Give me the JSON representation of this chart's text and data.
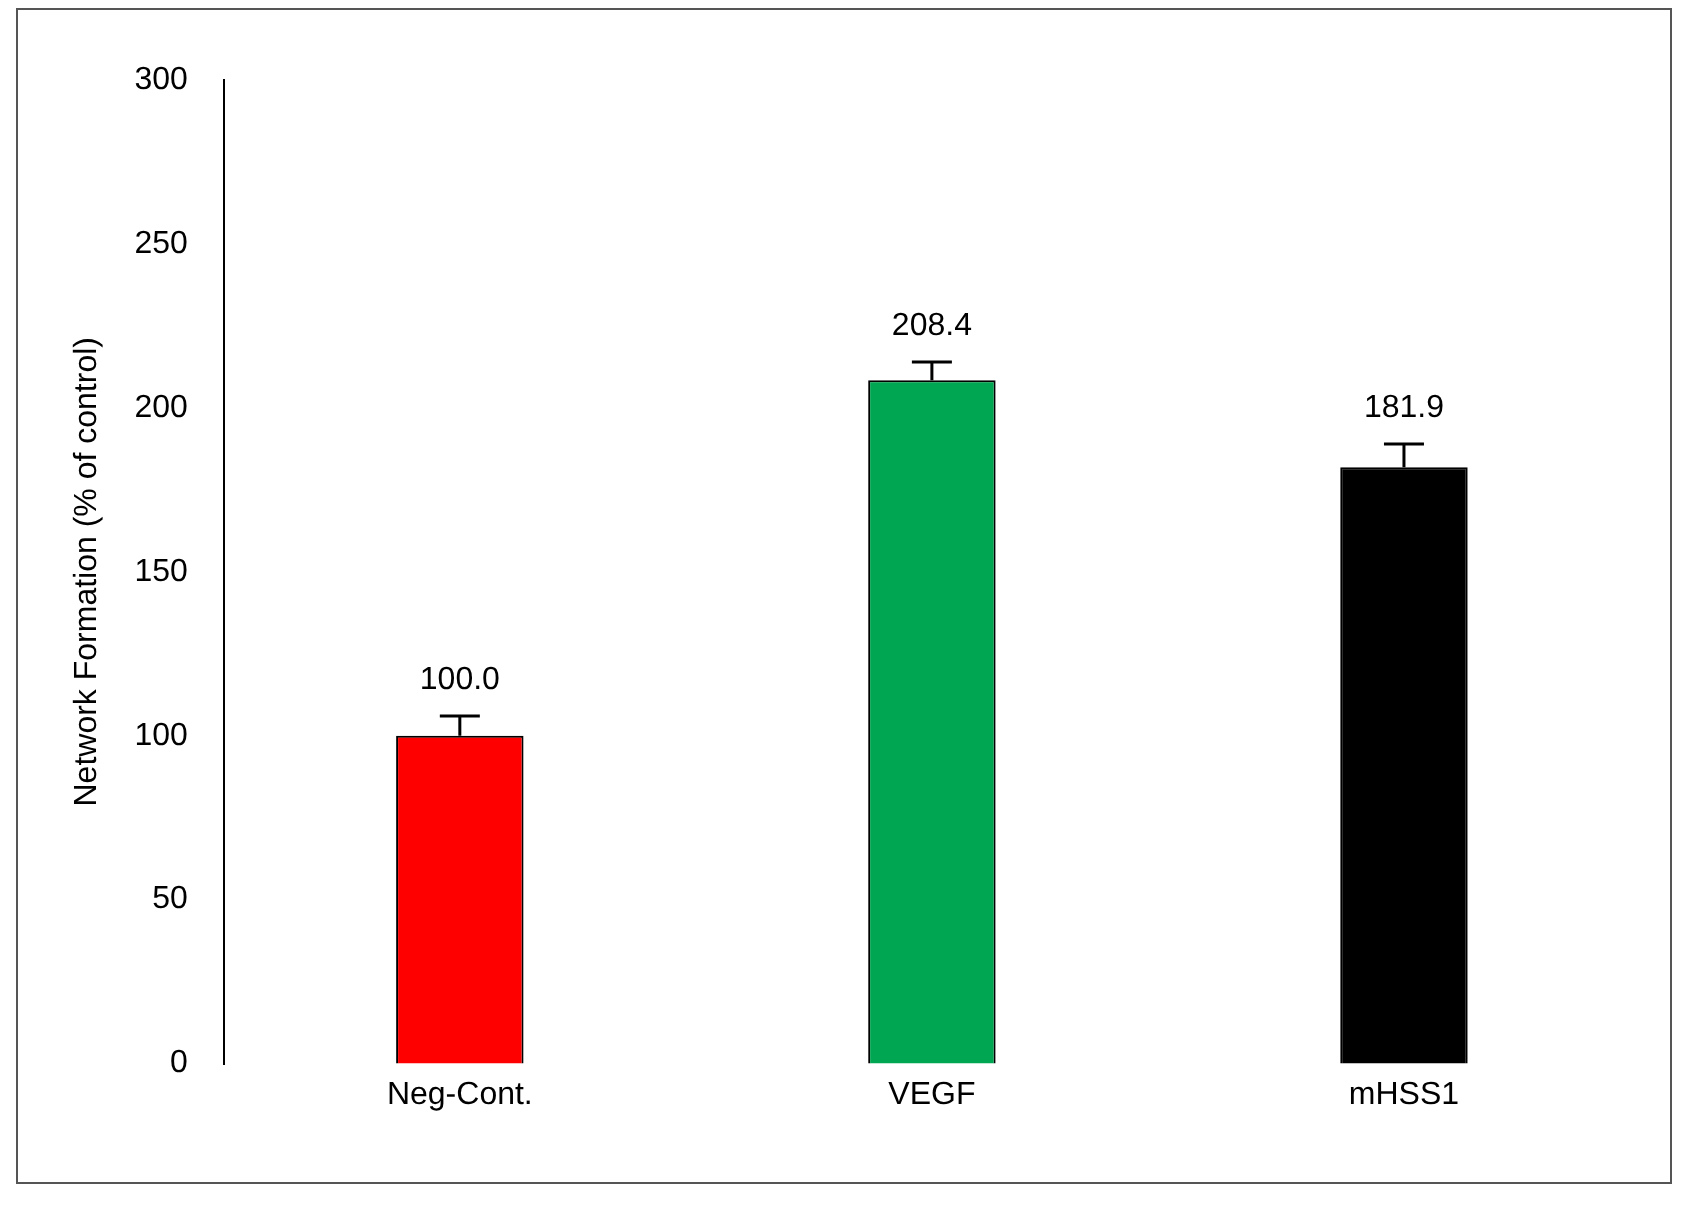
{
  "chart_data": {
    "type": "bar",
    "ylabel": "Network Formation (% of control)",
    "categories": [
      "Neg-Cont.",
      "VEGF",
      "mHSS1"
    ],
    "values": [
      100.0,
      208.4,
      181.9
    ],
    "colors": [
      "#ff0000",
      "#00a651",
      "#000000"
    ],
    "errors": [
      [
        100.0,
        106
      ],
      [
        208.4,
        214
      ],
      [
        181.9,
        189
      ]
    ],
    "value_labels": [
      "100.0",
      "208.4",
      "181.9"
    ],
    "ylim": [
      0,
      300
    ],
    "yticks": [
      0,
      50,
      100,
      150,
      200,
      250,
      300
    ],
    "grid": false,
    "legend": false
  }
}
